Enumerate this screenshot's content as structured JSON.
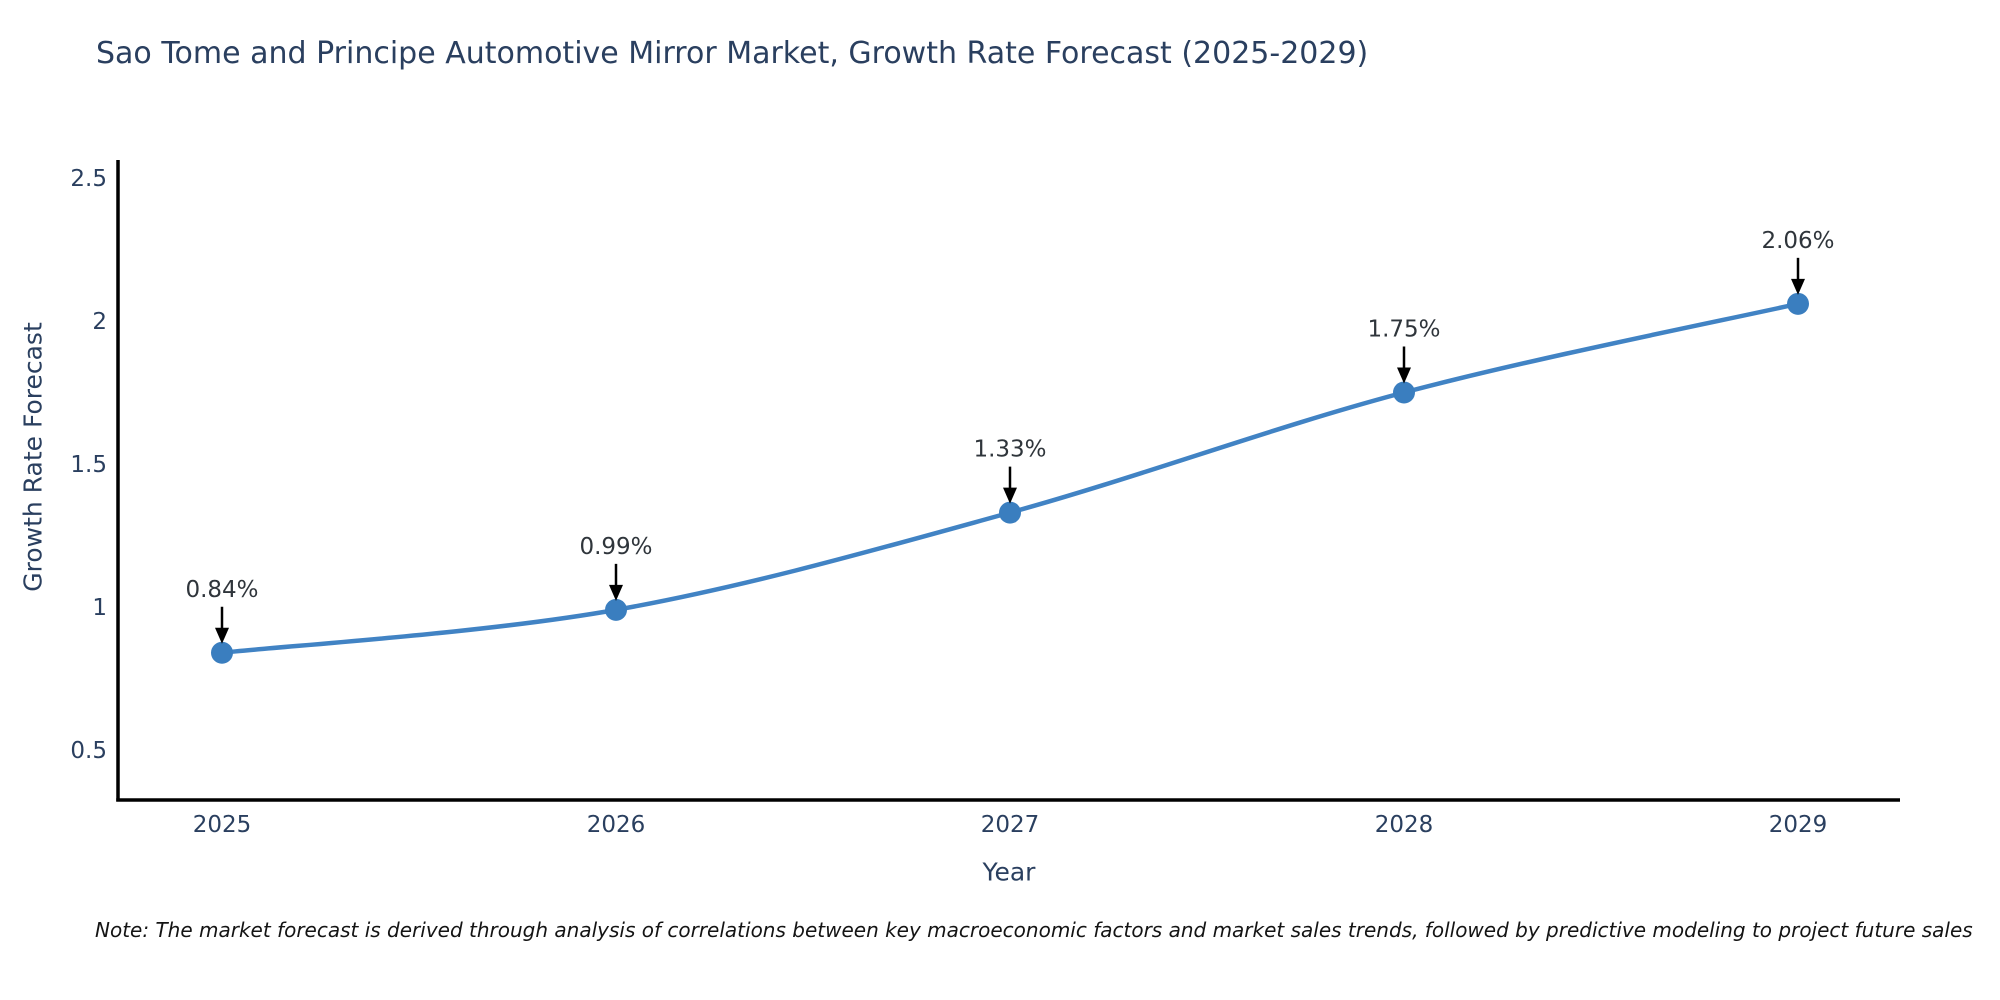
{
  "header": {
    "title": "Sao Tome and Principe Automotive Mirror Market, Growth Rate Forecast (2025-2029)"
  },
  "chart_data": {
    "type": "line",
    "title": "Sao Tome and Principe Automotive Mirror Market, Growth Rate Forecast (2025-2029)",
    "x": [
      "2025",
      "2026",
      "2027",
      "2028",
      "2029"
    ],
    "series": [
      {
        "name": "Growth Rate Forecast",
        "values": [
          0.84,
          0.99,
          1.33,
          1.75,
          2.06
        ]
      }
    ],
    "point_labels": [
      "0.84%",
      "0.99%",
      "1.33%",
      "1.75%",
      "2.06%"
    ],
    "xlabel": "Year",
    "ylabel": "Growth Rate Forecast",
    "ytick_labels": [
      "0.5",
      "1",
      "1.5",
      "2",
      "2.5"
    ],
    "ytick_values": [
      0.5,
      1,
      1.5,
      2,
      2.5
    ],
    "ylim": [
      0.33,
      2.56
    ],
    "grid": false,
    "legend_position": "none",
    "line_color": "#4183c4",
    "marker_color": "#3a7ebf",
    "annotation_color": "#2f353b",
    "arrow_color": "#000000",
    "axis_color": "#000000",
    "text_color": "#2a3f5f"
  },
  "footnote": {
    "text": "Note: The market forecast is derived through analysis of correlations between key macroeconomic factors and market sales trends, followed by predictive modeling to project future sales"
  }
}
